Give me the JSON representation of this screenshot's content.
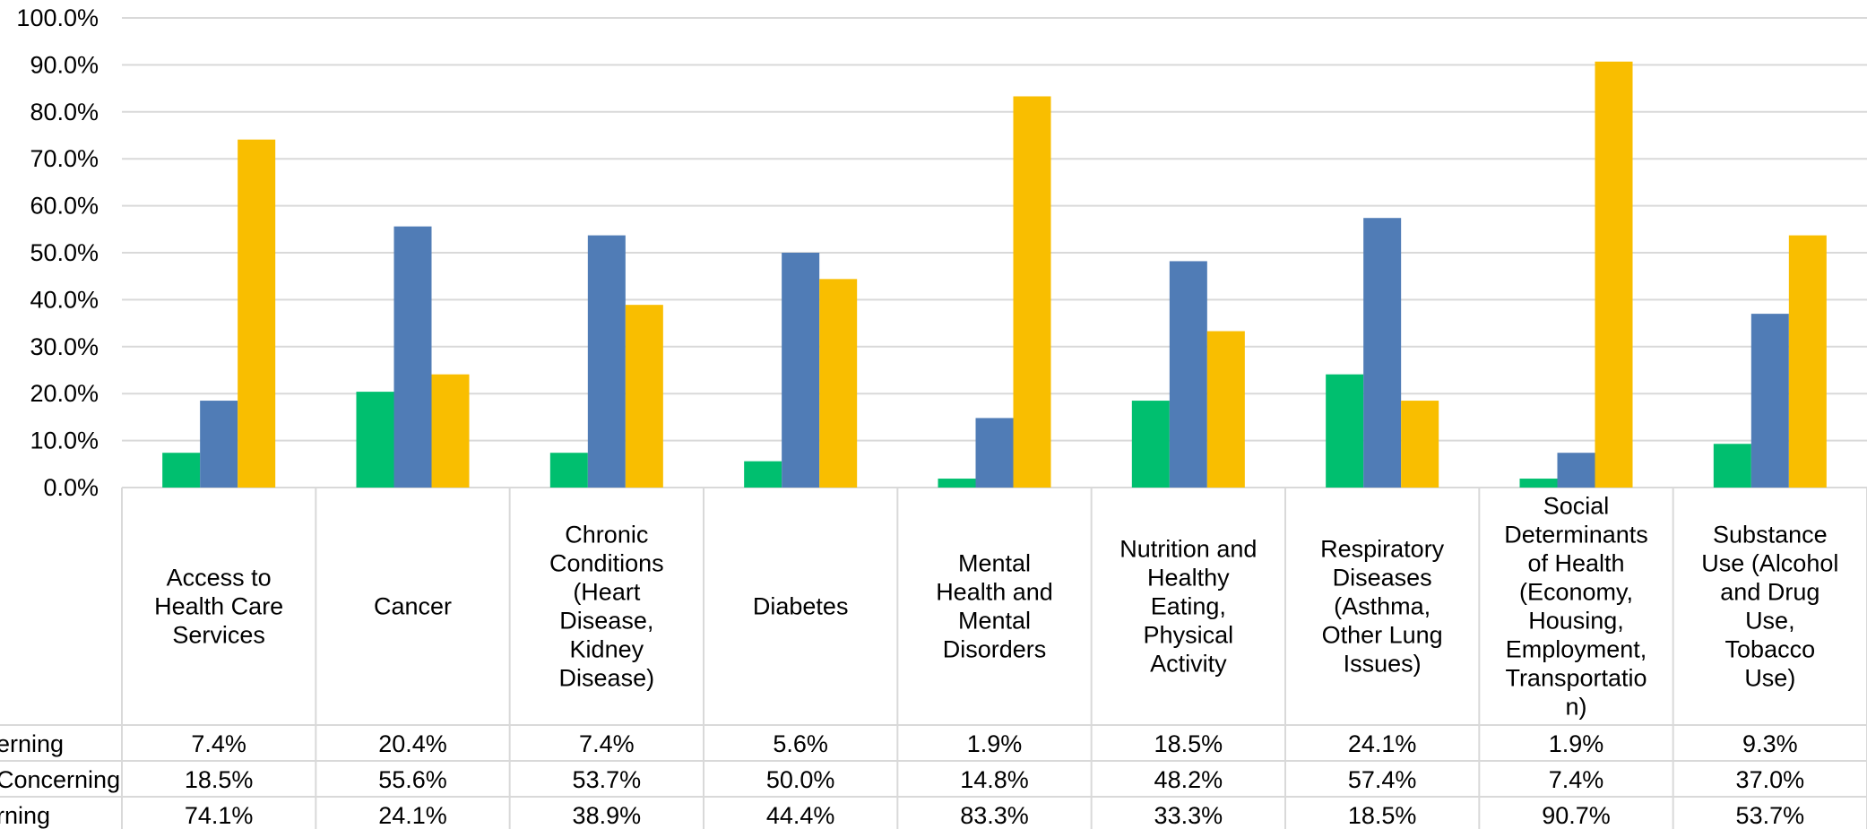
{
  "chart_data": {
    "type": "bar",
    "title": "",
    "xlabel": "",
    "ylabel": "",
    "ylim": [
      0,
      100
    ],
    "y_ticks": [
      "0.0%",
      "10.0%",
      "20.0%",
      "30.0%",
      "40.0%",
      "50.0%",
      "60.0%",
      "70.0%",
      "80.0%",
      "90.0%",
      "100.0%"
    ],
    "grid": true,
    "legend": "data-table-rows",
    "categories": [
      "Access to Health Care Services",
      "Cancer",
      "Chronic Conditions (Heart Disease, Kidney Disease)",
      "Diabetes",
      "Mental Health and Mental Disorders",
      "Nutrition and Healthy Eating, Physical Activity",
      "Respiratory Diseases (Asthma, Other Lung Issues)",
      "Social Determinants of Health (Economy, Housing, Employment, Transportation)",
      "Substance Use (Alcohol and Drug Use, Tobacco Use)"
    ],
    "category_lines": [
      [
        "Access to",
        "Health Care",
        "Services"
      ],
      [
        "Cancer"
      ],
      [
        "Chronic",
        "Conditions",
        "(Heart",
        "Disease,",
        "Kidney",
        "Disease)"
      ],
      [
        "Diabetes"
      ],
      [
        "Mental",
        "Health and",
        "Mental",
        "Disorders"
      ],
      [
        "Nutrition and",
        "Healthy",
        "Eating,",
        "Physical",
        "Activity"
      ],
      [
        "Respiratory",
        "Diseases",
        "(Asthma,",
        "Other Lung",
        "Issues)"
      ],
      [
        "Social",
        "Determinants",
        "of Health",
        "(Economy,",
        "Housing,",
        "Employment,",
        "Transportatio",
        "n)"
      ],
      [
        "Substance",
        "Use (Alcohol",
        "and Drug",
        "Use,",
        "Tobacco",
        "Use)"
      ]
    ],
    "series": [
      {
        "name": "erning",
        "color": "#00bf6f",
        "values": [
          7.4,
          20.4,
          7.4,
          5.6,
          1.9,
          18.5,
          24.1,
          1.9,
          9.3
        ],
        "labels": [
          "7.4%",
          "20.4%",
          "7.4%",
          "5.6%",
          "1.9%",
          "18.5%",
          "24.1%",
          "1.9%",
          "9.3%"
        ]
      },
      {
        "name": "Concerning",
        "color": "#507cb6",
        "values": [
          18.5,
          55.6,
          53.7,
          50.0,
          14.8,
          48.2,
          57.4,
          7.4,
          37.0
        ],
        "labels": [
          "18.5%",
          "55.6%",
          "53.7%",
          "50.0%",
          "14.8%",
          "48.2%",
          "57.4%",
          "7.4%",
          "37.0%"
        ]
      },
      {
        "name": "rning",
        "color": "#f9be00",
        "values": [
          74.1,
          24.1,
          38.9,
          44.4,
          83.3,
          33.3,
          18.5,
          90.7,
          53.7
        ],
        "labels": [
          "74.1%",
          "24.1%",
          "38.9%",
          "44.4%",
          "83.3%",
          "33.3%",
          "18.5%",
          "90.7%",
          "53.7%"
        ]
      }
    ]
  }
}
